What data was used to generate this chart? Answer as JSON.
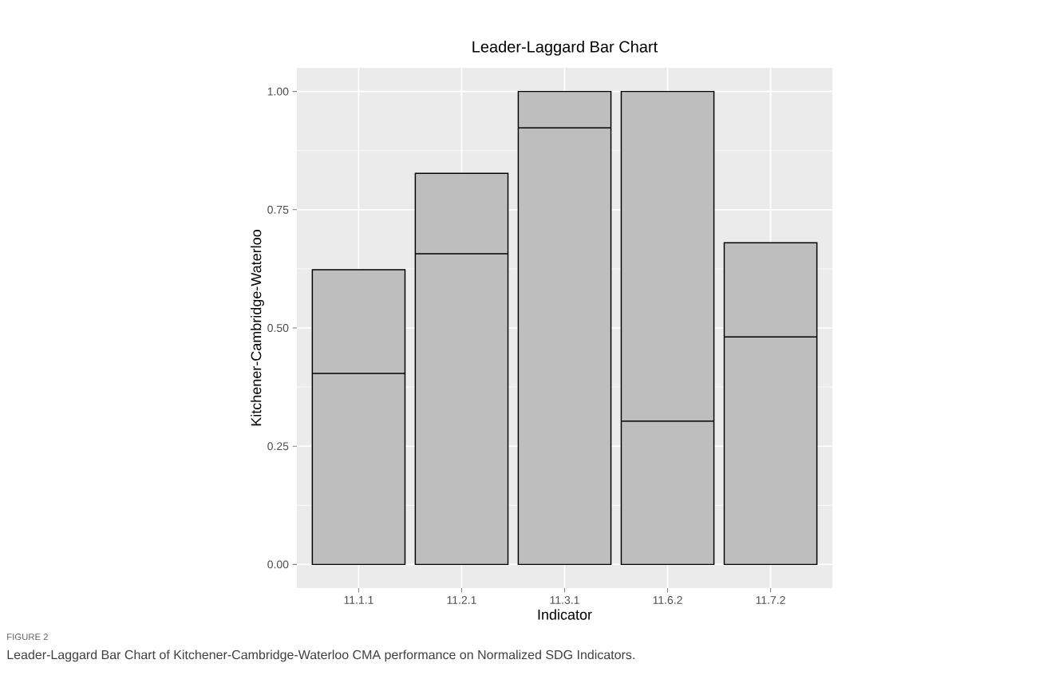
{
  "chart_data": {
    "type": "box",
    "title": "Leader-Laggard Bar Chart",
    "xlabel": "Indicator",
    "ylabel": "Kitchener-Cambridge-Waterloo",
    "categories": [
      "11.1.1",
      "11.2.1",
      "11.3.1",
      "11.6.2",
      "11.7.2"
    ],
    "boxes": [
      {
        "low": 0,
        "q1": 0,
        "median": 0.404,
        "q3": 0.623,
        "high": 0.623
      },
      {
        "low": 0,
        "q1": 0,
        "median": 0.657,
        "q3": 0.827,
        "high": 0.827
      },
      {
        "low": 0,
        "q1": 0,
        "median": 0.923,
        "q3": 1.0,
        "high": 1.0
      },
      {
        "low": 0,
        "q1": 0,
        "median": 0.303,
        "q3": 1.0,
        "high": 1.0
      },
      {
        "low": 0,
        "q1": 0,
        "median": 0.481,
        "q3": 0.68,
        "high": 0.68
      }
    ],
    "color": "#bebebe",
    "ylim": [
      -0.05,
      1.05
    ],
    "yticks": [
      {
        "value": 0,
        "label": "0.00"
      },
      {
        "value": 0.25,
        "label": "0.25"
      },
      {
        "value": 0.5,
        "label": "0.50"
      },
      {
        "value": 0.75,
        "label": "0.75"
      },
      {
        "value": 1,
        "label": "1.00"
      }
    ],
    "grid": true,
    "annotations": [
      "FIGURE 2",
      "Leader-Laggard Bar Chart of Kitchener-Cambridge-Waterloo CMA performance on Normalized SDG Indicators."
    ]
  }
}
